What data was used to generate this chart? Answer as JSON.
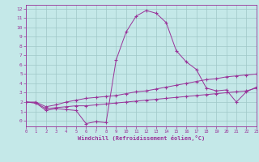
{
  "xlabel": "Windchill (Refroidissement éolien,°C)",
  "bg_color": "#c4e8e8",
  "grid_color": "#a0c8c8",
  "line_color": "#993399",
  "x_min": 0,
  "x_max": 23,
  "y_min": -0.6,
  "y_max": 12.4,
  "yticks": [
    0,
    1,
    2,
    3,
    4,
    5,
    6,
    7,
    8,
    9,
    10,
    11,
    12
  ],
  "xticks": [
    0,
    1,
    2,
    3,
    4,
    5,
    6,
    7,
    8,
    9,
    10,
    11,
    12,
    13,
    14,
    15,
    16,
    17,
    18,
    19,
    20,
    21,
    22,
    23
  ],
  "line1_x": [
    0,
    1,
    2,
    3,
    4,
    5,
    6,
    7,
    8,
    9,
    10,
    11,
    12,
    13,
    14,
    15,
    16,
    17,
    18,
    19,
    20,
    21,
    22,
    23
  ],
  "line1_y": [
    2.0,
    1.9,
    1.1,
    1.3,
    1.2,
    1.1,
    -0.3,
    -0.1,
    -0.2,
    6.5,
    9.5,
    11.2,
    11.8,
    11.5,
    10.5,
    7.5,
    6.3,
    5.5,
    3.5,
    3.2,
    3.3,
    2.0,
    3.1,
    3.6
  ],
  "line2_x": [
    0,
    1,
    2,
    3,
    4,
    5,
    6,
    7,
    8,
    9,
    10,
    11,
    12,
    13,
    14,
    15,
    16,
    17,
    18,
    19,
    20,
    21,
    22,
    23
  ],
  "line2_y": [
    2.0,
    2.0,
    1.5,
    1.7,
    2.0,
    2.2,
    2.4,
    2.5,
    2.6,
    2.7,
    2.9,
    3.1,
    3.2,
    3.4,
    3.6,
    3.8,
    4.0,
    4.2,
    4.4,
    4.5,
    4.7,
    4.8,
    4.9,
    5.0
  ],
  "line3_x": [
    0,
    1,
    2,
    3,
    4,
    5,
    6,
    7,
    8,
    9,
    10,
    11,
    12,
    13,
    14,
    15,
    16,
    17,
    18,
    19,
    20,
    21,
    22,
    23
  ],
  "line3_y": [
    2.0,
    1.9,
    1.3,
    1.4,
    1.5,
    1.6,
    1.6,
    1.7,
    1.8,
    1.9,
    2.0,
    2.1,
    2.2,
    2.3,
    2.4,
    2.5,
    2.6,
    2.7,
    2.8,
    2.9,
    3.0,
    3.1,
    3.2,
    3.5
  ]
}
